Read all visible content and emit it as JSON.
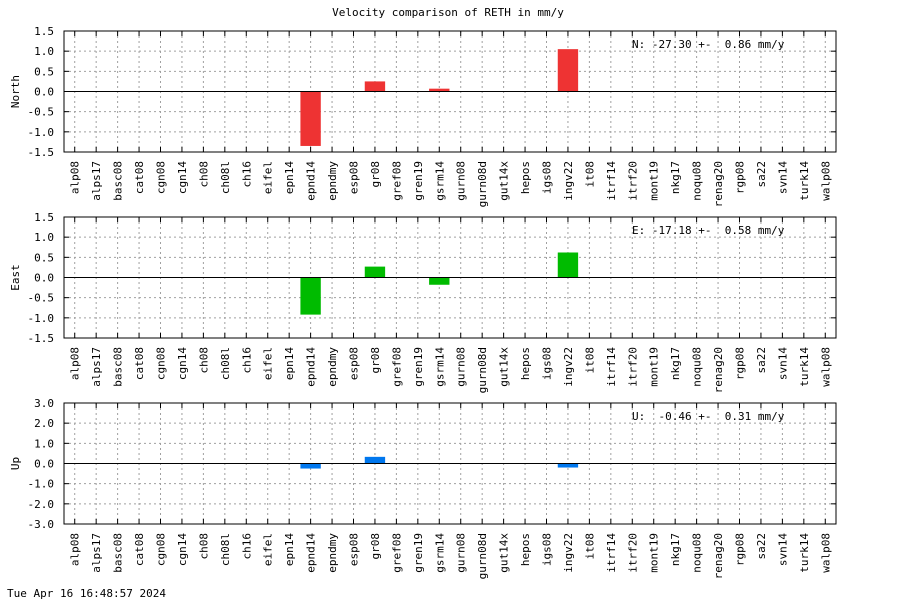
{
  "figure": {
    "title": "Velocity comparison of RETH in mm/y",
    "timestamp": "Tue Apr 16 16:48:57 2024"
  },
  "chart_data": [
    {
      "type": "bar",
      "ylabel": "North",
      "ylim": [
        -1.5,
        1.5
      ],
      "yticks": [
        "-1.5",
        "-1.0",
        "-0.5",
        "0.0",
        "0.5",
        "1.0",
        "1.5"
      ],
      "stat_text": "N: -27.30 +-  0.86 mm/y",
      "color": "#ee3333",
      "grid": true,
      "categories": [
        "alp08",
        "alps17",
        "basc08",
        "cat08",
        "cgn08",
        "cgn14",
        "ch08",
        "ch08l",
        "ch16",
        "eifel",
        "epn14",
        "epnd14",
        "epndmy",
        "esp08",
        "gr08",
        "gref08",
        "gren19",
        "gsrm14",
        "gurn08",
        "gurn08d",
        "gut14x",
        "hepos",
        "igs08",
        "ingv22",
        "it08",
        "itrf14",
        "itrf20",
        "mont19",
        "nkg17",
        "noqu08",
        "renag20",
        "rgp08",
        "sa22",
        "svn14",
        "turk14",
        "walp08"
      ],
      "values": [
        0,
        0,
        0,
        0,
        0,
        0,
        0,
        0,
        0,
        0,
        0,
        -1.35,
        0,
        0,
        0.25,
        0,
        0,
        0.07,
        0,
        0,
        0,
        0,
        0,
        1.05,
        0,
        0,
        0,
        0,
        0,
        0,
        0,
        0,
        0,
        0,
        0,
        0
      ]
    },
    {
      "type": "bar",
      "ylabel": "East",
      "ylim": [
        -1.5,
        1.5
      ],
      "yticks": [
        "-1.5",
        "-1.0",
        "-0.5",
        "0.0",
        "0.5",
        "1.0",
        "1.5"
      ],
      "stat_text": "E: -17.18 +-  0.58 mm/y",
      "color": "#00bb00",
      "grid": true,
      "categories": [
        "alp08",
        "alps17",
        "basc08",
        "cat08",
        "cgn08",
        "cgn14",
        "ch08",
        "ch08l",
        "ch16",
        "eifel",
        "epn14",
        "epnd14",
        "epndmy",
        "esp08",
        "gr08",
        "gref08",
        "gren19",
        "gsrm14",
        "gurn08",
        "gurn08d",
        "gut14x",
        "hepos",
        "igs08",
        "ingv22",
        "it08",
        "itrf14",
        "itrf20",
        "mont19",
        "nkg17",
        "noqu08",
        "renag20",
        "rgp08",
        "sa22",
        "svn14",
        "turk14",
        "walp08"
      ],
      "values": [
        0,
        0,
        0,
        0,
        0,
        0,
        0,
        0,
        0,
        0,
        0,
        -0.92,
        0,
        0,
        0.27,
        0,
        0,
        -0.18,
        0,
        0,
        0,
        0,
        0,
        0.62,
        0,
        0,
        0,
        0,
        0,
        0,
        0,
        0,
        0,
        0,
        0,
        0
      ]
    },
    {
      "type": "bar",
      "ylabel": "Up",
      "ylim": [
        -3.0,
        3.0
      ],
      "yticks": [
        "-3.0",
        "-2.0",
        "-1.0",
        "0.0",
        "1.0",
        "2.0",
        "3.0"
      ],
      "stat_text": "U:  -0.46 +-  0.31 mm/y",
      "color": "#0077ee",
      "grid": true,
      "categories": [
        "alp08",
        "alps17",
        "basc08",
        "cat08",
        "cgn08",
        "cgn14",
        "ch08",
        "ch08l",
        "ch16",
        "eifel",
        "epn14",
        "epnd14",
        "epndmy",
        "esp08",
        "gr08",
        "gref08",
        "gren19",
        "gsrm14",
        "gurn08",
        "gurn08d",
        "gut14x",
        "hepos",
        "igs08",
        "ingv22",
        "it08",
        "itrf14",
        "itrf20",
        "mont19",
        "nkg17",
        "noqu08",
        "renag20",
        "rgp08",
        "sa22",
        "svn14",
        "turk14",
        "walp08"
      ],
      "values": [
        0,
        0,
        0,
        0,
        0,
        0,
        0,
        0,
        0,
        0,
        0,
        -0.25,
        0,
        0,
        0.33,
        0,
        0,
        0,
        0,
        0,
        0,
        0,
        0,
        -0.2,
        0,
        0,
        0,
        0,
        0,
        0,
        0,
        0,
        0,
        0,
        0,
        0
      ]
    }
  ]
}
